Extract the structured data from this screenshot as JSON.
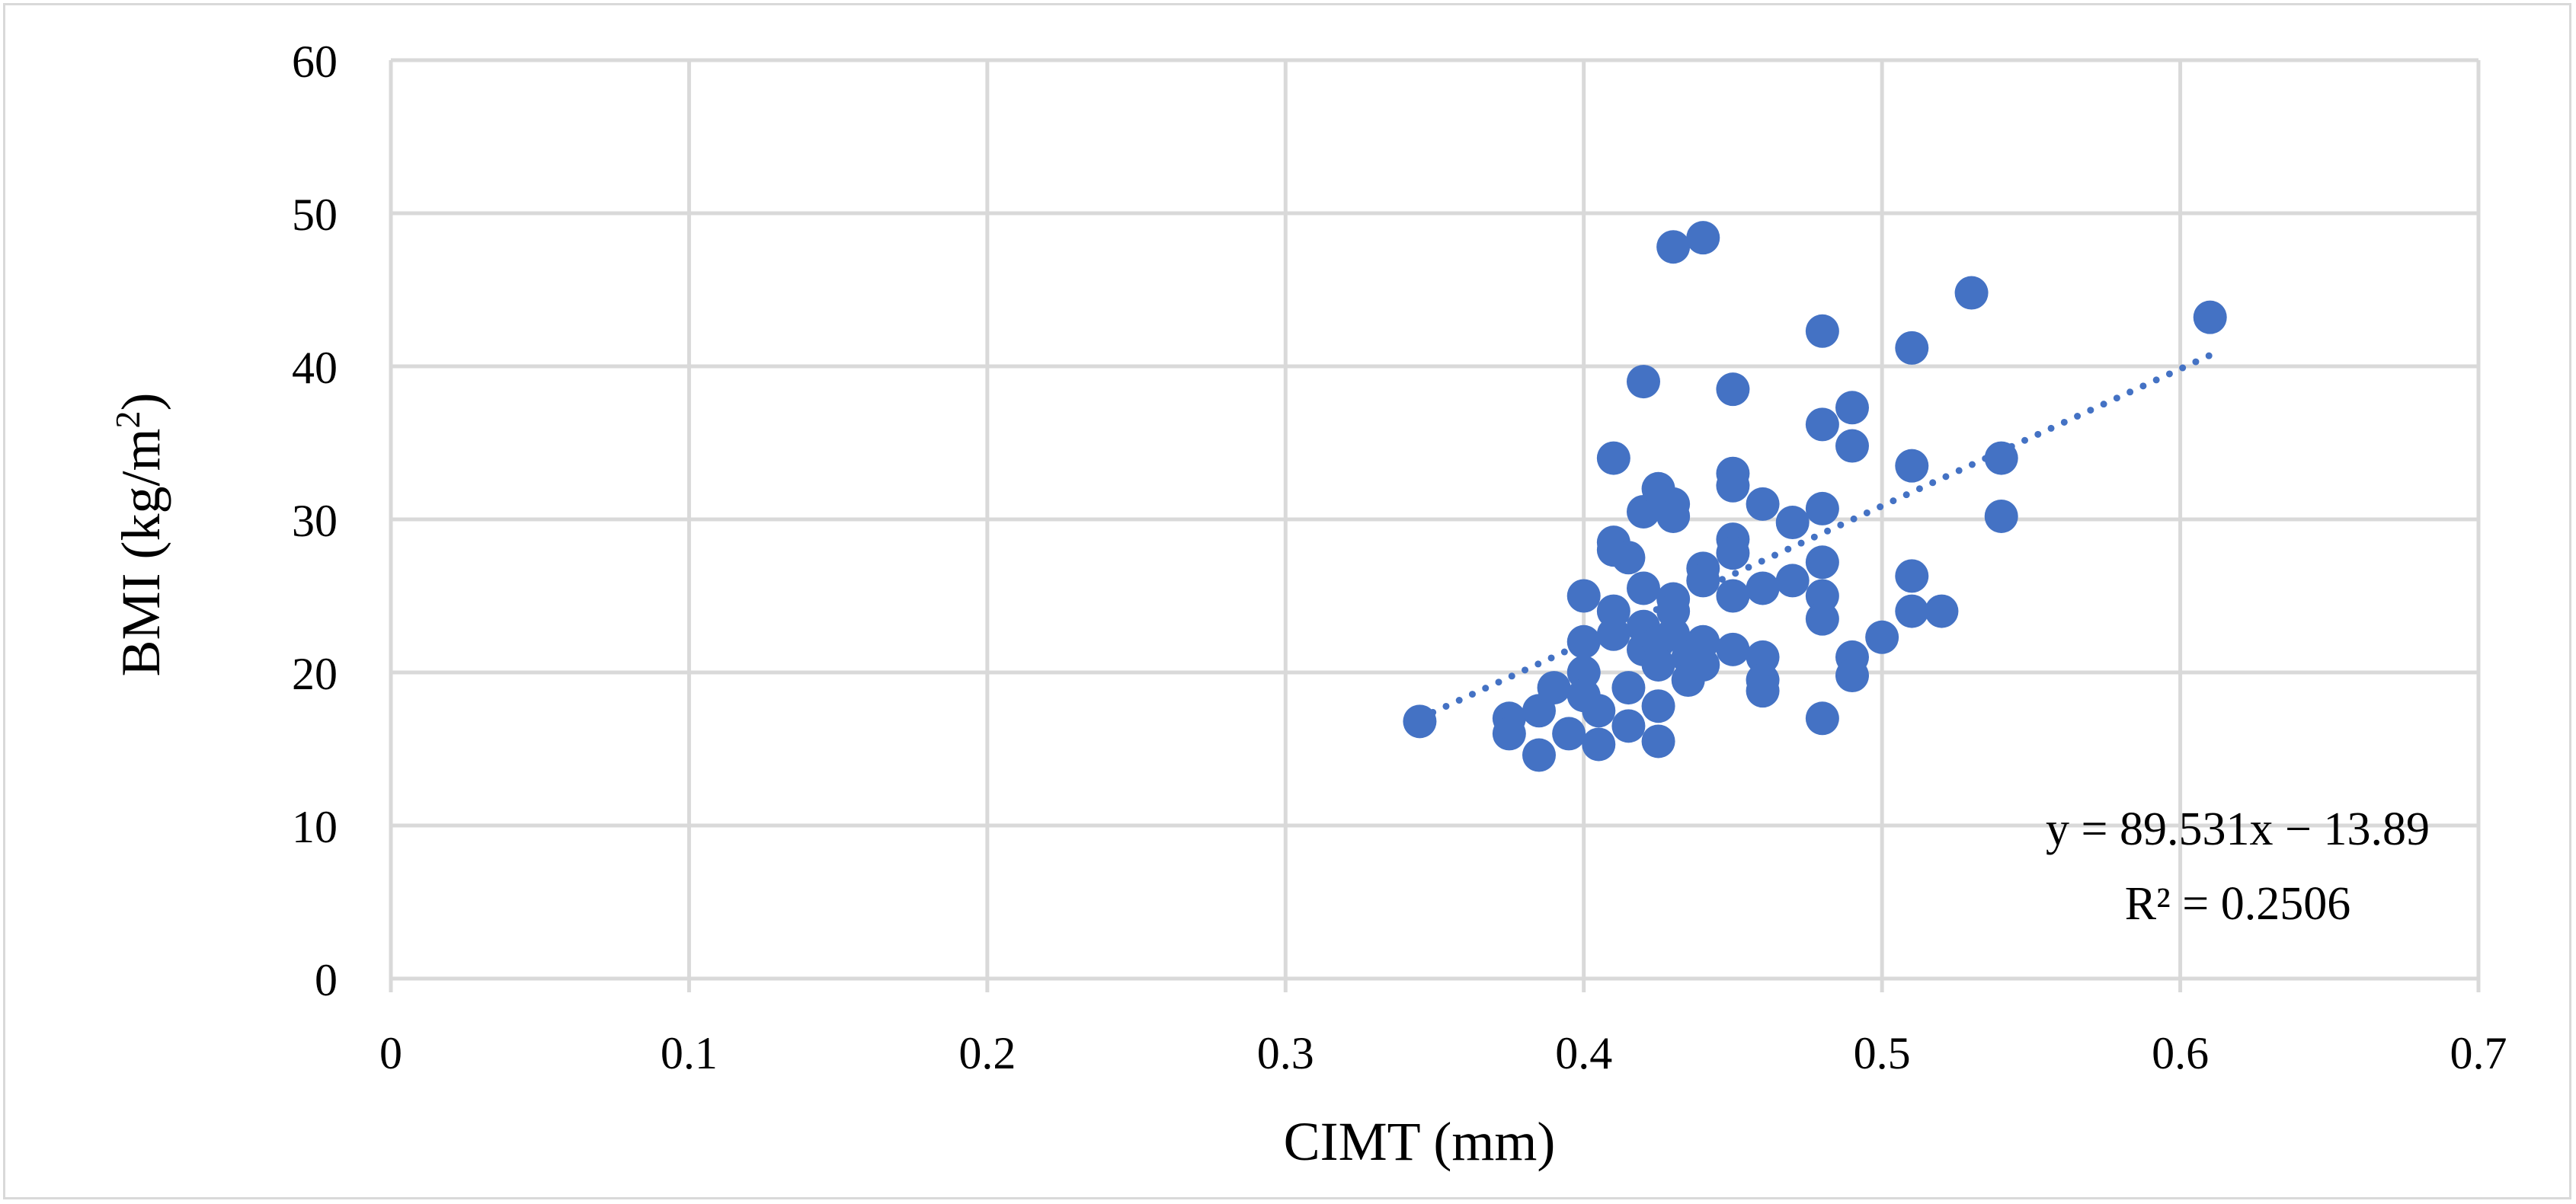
{
  "chart_data": {
    "type": "scatter",
    "title": "",
    "xlabel": "CIMT (mm)",
    "ylabel_main": "BMI (kg/m",
    "ylabel_sup": "2",
    "ylabel_close": ")",
    "xlim": [
      0,
      0.7
    ],
    "ylim": [
      0,
      60
    ],
    "xticks": [
      0,
      0.1,
      0.2,
      0.3,
      0.4,
      0.5,
      0.6,
      0.7
    ],
    "xtick_labels": [
      "0",
      "0.1",
      "0.2",
      "0.3",
      "0.4",
      "0.5",
      "0.6",
      "0.7"
    ],
    "yticks": [
      0,
      10,
      20,
      30,
      40,
      50,
      60
    ],
    "ytick_labels": [
      "0",
      "10",
      "20",
      "30",
      "40",
      "50",
      "60"
    ],
    "grid": true,
    "legend": "none",
    "marker_color": "#4472c4",
    "grid_color": "#d9d9d9",
    "series": [
      {
        "points": [
          [
            0.345,
            16.8
          ],
          [
            0.375,
            17.0
          ],
          [
            0.375,
            16.0
          ],
          [
            0.385,
            17.5
          ],
          [
            0.385,
            14.6
          ],
          [
            0.39,
            19.0
          ],
          [
            0.395,
            16.0
          ],
          [
            0.4,
            25.0
          ],
          [
            0.4,
            22.0
          ],
          [
            0.4,
            20.0
          ],
          [
            0.4,
            18.5
          ],
          [
            0.405,
            17.5
          ],
          [
            0.405,
            15.3
          ],
          [
            0.41,
            34.0
          ],
          [
            0.41,
            28.5
          ],
          [
            0.41,
            28.0
          ],
          [
            0.41,
            24.0
          ],
          [
            0.41,
            22.5
          ],
          [
            0.415,
            27.5
          ],
          [
            0.415,
            19.0
          ],
          [
            0.415,
            16.5
          ],
          [
            0.42,
            39.0
          ],
          [
            0.42,
            30.5
          ],
          [
            0.42,
            25.5
          ],
          [
            0.42,
            23.0
          ],
          [
            0.42,
            21.5
          ],
          [
            0.425,
            32.0
          ],
          [
            0.425,
            22.0
          ],
          [
            0.425,
            20.5
          ],
          [
            0.425,
            17.8
          ],
          [
            0.425,
            15.5
          ],
          [
            0.43,
            47.8
          ],
          [
            0.43,
            31.0
          ],
          [
            0.43,
            30.2
          ],
          [
            0.43,
            24.8
          ],
          [
            0.43,
            24.0
          ],
          [
            0.43,
            22.5
          ],
          [
            0.435,
            21.0
          ],
          [
            0.435,
            19.5
          ],
          [
            0.44,
            48.4
          ],
          [
            0.44,
            26.8
          ],
          [
            0.44,
            26.0
          ],
          [
            0.44,
            22.0
          ],
          [
            0.44,
            20.5
          ],
          [
            0.45,
            38.5
          ],
          [
            0.45,
            33.0
          ],
          [
            0.45,
            32.2
          ],
          [
            0.45,
            28.7
          ],
          [
            0.45,
            27.8
          ],
          [
            0.45,
            25.0
          ],
          [
            0.45,
            21.5
          ],
          [
            0.46,
            31.0
          ],
          [
            0.46,
            25.5
          ],
          [
            0.46,
            21.0
          ],
          [
            0.46,
            19.5
          ],
          [
            0.46,
            18.8
          ],
          [
            0.47,
            29.8
          ],
          [
            0.47,
            26.0
          ],
          [
            0.48,
            42.3
          ],
          [
            0.48,
            36.2
          ],
          [
            0.48,
            30.7
          ],
          [
            0.48,
            27.2
          ],
          [
            0.48,
            25.0
          ],
          [
            0.48,
            23.5
          ],
          [
            0.48,
            17.0
          ],
          [
            0.49,
            37.3
          ],
          [
            0.49,
            34.8
          ],
          [
            0.49,
            21.0
          ],
          [
            0.49,
            19.8
          ],
          [
            0.5,
            22.3
          ],
          [
            0.51,
            41.2
          ],
          [
            0.51,
            33.5
          ],
          [
            0.51,
            26.3
          ],
          [
            0.51,
            24.0
          ],
          [
            0.52,
            24.0
          ],
          [
            0.53,
            44.8
          ],
          [
            0.54,
            34.0
          ],
          [
            0.54,
            30.2
          ],
          [
            0.61,
            43.2
          ]
        ]
      }
    ],
    "trendline": {
      "type": "linear",
      "slope": 89.531,
      "intercept": -13.89,
      "x_range": [
        0.345,
        0.61
      ],
      "style": "dotted",
      "equation_label": "y = 89.531x − 13.89",
      "r2_label": "R² = 0.2506"
    }
  }
}
